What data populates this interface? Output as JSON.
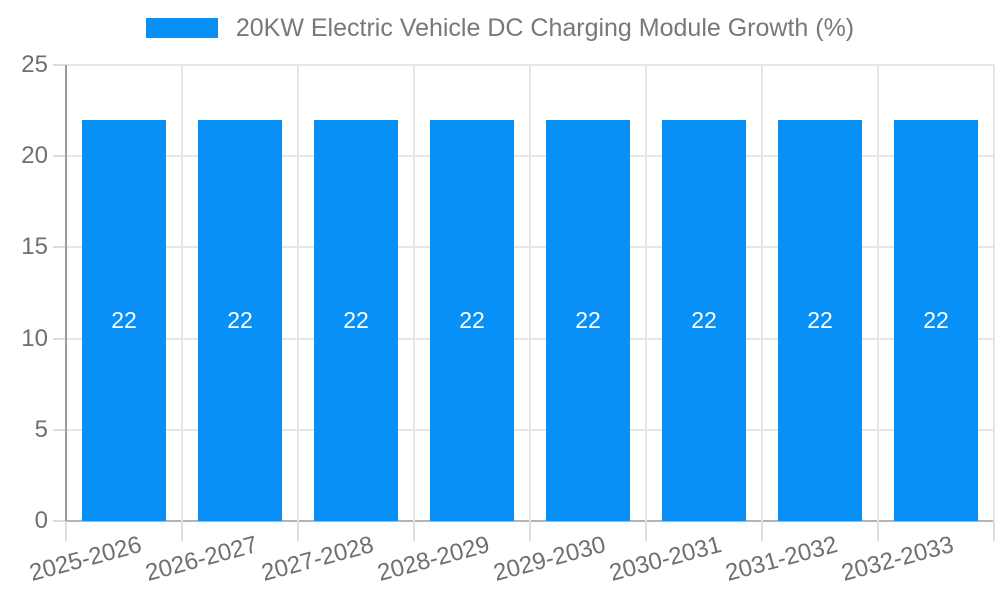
{
  "chart_data": {
    "type": "bar",
    "title": "20KW Electric Vehicle DC Charging Module Growth (%)",
    "legend_position": "top",
    "categories": [
      "2025-2026",
      "2026-2027",
      "2027-2028",
      "2028-2029",
      "2029-2030",
      "2030-2031",
      "2031-2032",
      "2032-2033"
    ],
    "values": [
      22,
      22,
      22,
      22,
      22,
      22,
      22,
      22
    ],
    "bar_labels": [
      "22",
      "22",
      "22",
      "22",
      "22",
      "22",
      "22",
      "22"
    ],
    "xlabel": "",
    "ylabel": "",
    "ylim": [
      0,
      25
    ],
    "yticks": [
      0,
      5,
      10,
      15,
      20,
      25
    ],
    "grid": true,
    "colors": {
      "bar": "#0990F6",
      "bar_label": "#FFFFFF",
      "axis_text": "#6F6F6F",
      "legend_text": "#787878",
      "gridline": "#E6E6E6",
      "tick_mark": "#DDDDDD",
      "y_axis_line": "#9A9A9A",
      "x_axis_line": "#B5B5B5"
    }
  }
}
